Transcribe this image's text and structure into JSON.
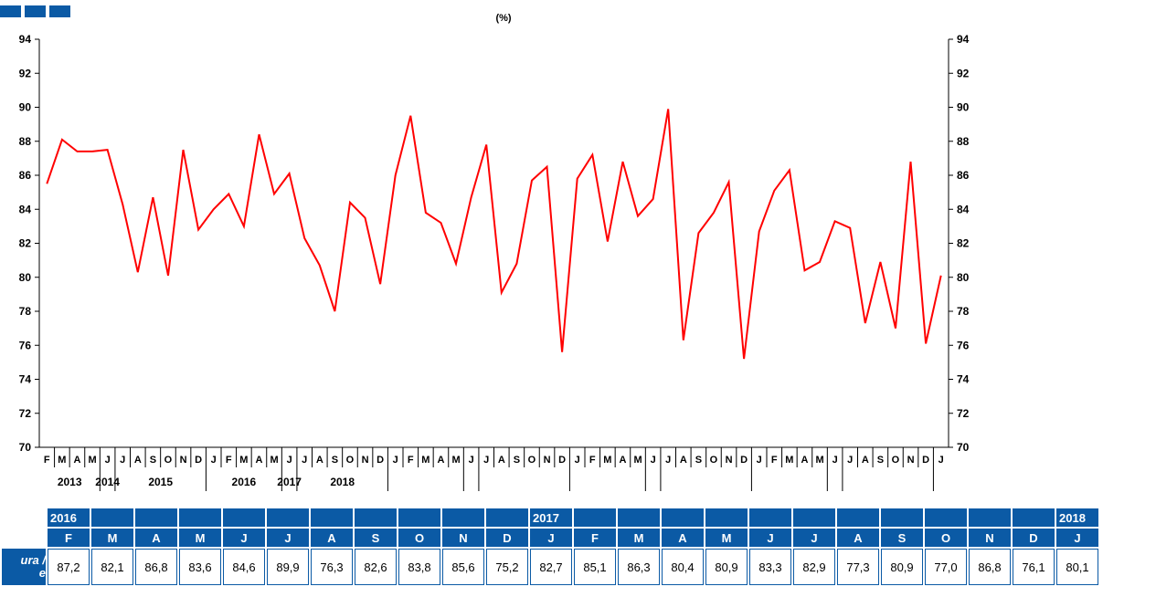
{
  "chart_data": {
    "type": "line",
    "title": "",
    "unit_label": "(%)",
    "ylim": [
      70,
      94
    ],
    "yticks": [
      70,
      72,
      74,
      76,
      78,
      80,
      82,
      84,
      86,
      88,
      90,
      92,
      94
    ],
    "grid": false,
    "line_color": "#ff0000",
    "x_months": [
      "F",
      "M",
      "A",
      "M",
      "J",
      "J",
      "A",
      "S",
      "O",
      "N",
      "D",
      "J",
      "F",
      "M",
      "A",
      "M",
      "J",
      "J",
      "A",
      "S",
      "O",
      "N",
      "D",
      "J",
      "F",
      "M",
      "A",
      "M",
      "J",
      "J",
      "A",
      "S",
      "O",
      "N",
      "D",
      "J",
      "F",
      "M",
      "A",
      "M",
      "J",
      "J",
      "A",
      "S",
      "O",
      "N",
      "D",
      "J",
      "F",
      "M",
      "A",
      "M",
      "J",
      "J",
      "A",
      "S",
      "O",
      "N",
      "D",
      "J"
    ],
    "years": [
      "2013",
      "2014",
      "2015",
      "2016",
      "2017",
      "2018"
    ],
    "series": [
      {
        "values": [
          85.5,
          88.1,
          87.4,
          87.4,
          87.5,
          84.3,
          80.3,
          84.7,
          80.1,
          87.5,
          82.8,
          84.0,
          84.9,
          83.0,
          88.4,
          84.9,
          86.1,
          82.3,
          80.7,
          78.0,
          84.4,
          83.5,
          79.6,
          86.0,
          89.5,
          83.8,
          83.2,
          80.8,
          84.7,
          87.8,
          79.1,
          80.8,
          85.7,
          86.5,
          75.6,
          85.8,
          87.2,
          82.1,
          86.8,
          83.6,
          84.6,
          89.9,
          76.3,
          82.6,
          83.8,
          85.6,
          75.2,
          82.7,
          85.1,
          86.3,
          80.4,
          80.9,
          83.3,
          82.9,
          77.3,
          80.9,
          77.0,
          86.8,
          76.1,
          80.1
        ]
      }
    ]
  },
  "table": {
    "row_label": "ura /\ne",
    "years_row": [
      "2016",
      "",
      "",
      "",
      "",
      "",
      "",
      "",
      "",
      "",
      "",
      "2017",
      "",
      "",
      "",
      "",
      "",
      "",
      "",
      "",
      "",
      "",
      "",
      "2018"
    ],
    "months_row": [
      "F",
      "M",
      "A",
      "M",
      "J",
      "J",
      "A",
      "S",
      "O",
      "N",
      "D",
      "J",
      "F",
      "M",
      "A",
      "M",
      "J",
      "J",
      "A",
      "S",
      "O",
      "N",
      "D",
      "J"
    ],
    "values": [
      "87,2",
      "82,1",
      "86,8",
      "83,6",
      "84,6",
      "89,9",
      "76,3",
      "82,6",
      "83,8",
      "85,6",
      "75,2",
      "82,7",
      "85,1",
      "86,3",
      "80,4",
      "80,9",
      "83,3",
      "82,9",
      "77,3",
      "80,9",
      "77,0",
      "86,8",
      "76,1",
      "80,1"
    ]
  },
  "colors": {
    "accent": "#0b5aa5",
    "line": "#ff0000"
  }
}
